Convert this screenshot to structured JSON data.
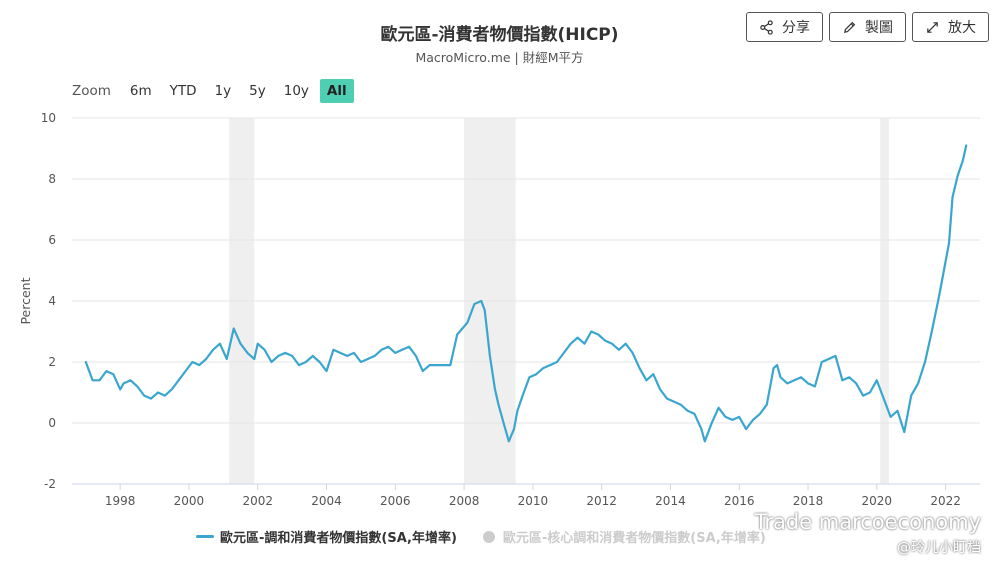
{
  "header": {
    "title": "歐元區-消費者物價指數(HICP)",
    "subtitle": "MacroMicro.me | 財經M平方"
  },
  "toolbar": {
    "share_label": "分享",
    "edit_label": "製圖",
    "expand_label": "放大"
  },
  "zoom": {
    "label": "Zoom",
    "options": [
      "6m",
      "YTD",
      "1y",
      "5y",
      "10y",
      "All"
    ],
    "active": "All"
  },
  "legend": {
    "items": [
      {
        "label": "歐元區-調和消費者物價指數(SA,年增率)",
        "active": true
      },
      {
        "label": "歐元區-核心調和消費者物價指數(SA,年增率)",
        "active": false
      }
    ]
  },
  "watermark": {
    "line1": "Trade marcoeconomy",
    "line2": "@玲儿小盯档"
  },
  "colors": {
    "series": "#3aa6cf",
    "recession": "#efefef",
    "accent": "#4ecfb3",
    "inactive": "#cccccc"
  },
  "chart_data": {
    "type": "line",
    "title": "歐元區-消費者物價指數(HICP)",
    "ylabel": "Percent",
    "xlabel": "",
    "ylim": [
      -2,
      10
    ],
    "yticks": [
      -2,
      0,
      2,
      4,
      6,
      8,
      10
    ],
    "xlim": [
      1996.6,
      2023.0
    ],
    "xticks": [
      "1998",
      "2000",
      "2002",
      "2004",
      "2006",
      "2008",
      "2010",
      "2012",
      "2014",
      "2016",
      "2018",
      "2020",
      "2022"
    ],
    "recession_bands": [
      [
        2001.17,
        2001.9
      ],
      [
        2008.0,
        2009.5
      ],
      [
        2020.1,
        2020.35
      ]
    ],
    "series": [
      {
        "name": "歐元區-調和消費者物價指數(SA,年增率)",
        "x": [
          1997.0,
          1997.2,
          1997.4,
          1997.6,
          1997.8,
          1998.0,
          1998.1,
          1998.3,
          1998.5,
          1998.7,
          1998.9,
          1999.1,
          1999.3,
          1999.5,
          1999.7,
          1999.9,
          2000.1,
          2000.3,
          2000.5,
          2000.7,
          2000.9,
          2001.1,
          2001.3,
          2001.5,
          2001.7,
          2001.9,
          2002.0,
          2002.2,
          2002.4,
          2002.6,
          2002.8,
          2003.0,
          2003.2,
          2003.4,
          2003.6,
          2003.8,
          2004.0,
          2004.2,
          2004.4,
          2004.6,
          2004.8,
          2005.0,
          2005.2,
          2005.4,
          2005.6,
          2005.8,
          2006.0,
          2006.2,
          2006.4,
          2006.6,
          2006.8,
          2007.0,
          2007.2,
          2007.4,
          2007.6,
          2007.8,
          2007.95,
          2008.1,
          2008.3,
          2008.5,
          2008.6,
          2008.75,
          2008.9,
          2009.0,
          2009.15,
          2009.3,
          2009.45,
          2009.55,
          2009.7,
          2009.9,
          2010.1,
          2010.3,
          2010.5,
          2010.7,
          2010.9,
          2011.1,
          2011.3,
          2011.5,
          2011.7,
          2011.9,
          2012.1,
          2012.3,
          2012.5,
          2012.7,
          2012.9,
          2013.1,
          2013.3,
          2013.5,
          2013.7,
          2013.9,
          2014.1,
          2014.3,
          2014.5,
          2014.7,
          2014.9,
          2015.0,
          2015.2,
          2015.4,
          2015.6,
          2015.8,
          2016.0,
          2016.2,
          2016.4,
          2016.6,
          2016.8,
          2017.0,
          2017.1,
          2017.2,
          2017.4,
          2017.6,
          2017.8,
          2018.0,
          2018.2,
          2018.4,
          2018.6,
          2018.8,
          2019.0,
          2019.2,
          2019.4,
          2019.6,
          2019.8,
          2020.0,
          2020.2,
          2020.4,
          2020.6,
          2020.8,
          2021.0,
          2021.2,
          2021.4,
          2021.6,
          2021.8,
          2021.95,
          2022.1,
          2022.2,
          2022.35,
          2022.5,
          2022.6
        ],
        "values": [
          2.0,
          1.4,
          1.4,
          1.7,
          1.6,
          1.1,
          1.3,
          1.4,
          1.2,
          0.9,
          0.8,
          1.0,
          0.9,
          1.1,
          1.4,
          1.7,
          2.0,
          1.9,
          2.1,
          2.4,
          2.6,
          2.1,
          3.1,
          2.6,
          2.3,
          2.1,
          2.6,
          2.4,
          2.0,
          2.2,
          2.3,
          2.2,
          1.9,
          2.0,
          2.2,
          2.0,
          1.7,
          2.4,
          2.3,
          2.2,
          2.3,
          2.0,
          2.1,
          2.2,
          2.4,
          2.5,
          2.3,
          2.4,
          2.5,
          2.2,
          1.7,
          1.9,
          1.9,
          1.9,
          1.9,
          2.9,
          3.1,
          3.3,
          3.9,
          4.0,
          3.7,
          2.2,
          1.1,
          0.6,
          0.0,
          -0.6,
          -0.2,
          0.4,
          0.9,
          1.5,
          1.6,
          1.8,
          1.9,
          2.0,
          2.3,
          2.6,
          2.8,
          2.6,
          3.0,
          2.9,
          2.7,
          2.6,
          2.4,
          2.6,
          2.3,
          1.8,
          1.4,
          1.6,
          1.1,
          0.8,
          0.7,
          0.6,
          0.4,
          0.3,
          -0.2,
          -0.6,
          0.0,
          0.5,
          0.2,
          0.1,
          0.2,
          -0.2,
          0.1,
          0.3,
          0.6,
          1.8,
          1.9,
          1.5,
          1.3,
          1.4,
          1.5,
          1.3,
          1.2,
          2.0,
          2.1,
          2.2,
          1.4,
          1.5,
          1.3,
          0.9,
          1.0,
          1.4,
          0.8,
          0.2,
          0.4,
          -0.3,
          0.9,
          1.3,
          2.0,
          3.0,
          4.1,
          5.0,
          5.9,
          7.4,
          8.1,
          8.6,
          9.1
        ]
      }
    ]
  }
}
